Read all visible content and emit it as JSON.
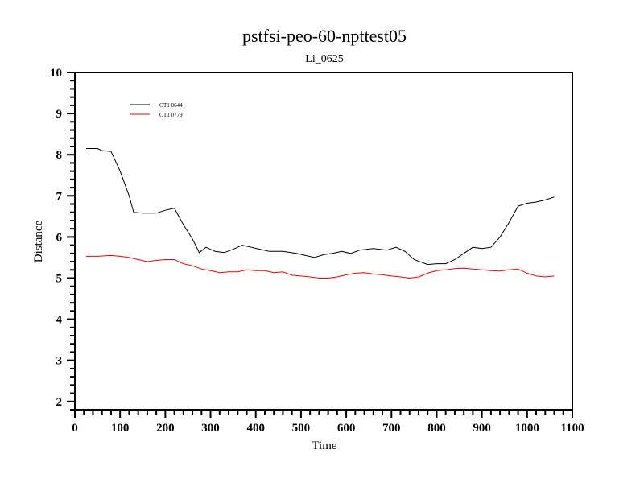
{
  "chart_data": {
    "type": "line",
    "title": "pstfsi-peo-60-npttest05",
    "subtitle": "Li_0625",
    "xlabel": "Time",
    "ylabel": "Distance",
    "xlim": [
      0,
      1100
    ],
    "ylim": [
      1.8,
      10
    ],
    "xticks": [
      0,
      100,
      200,
      300,
      400,
      500,
      600,
      700,
      800,
      900,
      1000,
      1100
    ],
    "yticks": [
      2,
      3,
      4,
      5,
      6,
      7,
      8,
      9,
      10
    ],
    "grid": false,
    "legend_position": "top-left",
    "series": [
      {
        "name": "OT1 0644",
        "color": "#000000",
        "x": [
          25,
          50,
          60,
          80,
          100,
          120,
          130,
          150,
          180,
          200,
          220,
          240,
          260,
          275,
          290,
          310,
          330,
          350,
          370,
          390,
          410,
          430,
          460,
          490,
          510,
          530,
          550,
          570,
          590,
          610,
          630,
          660,
          690,
          710,
          730,
          750,
          780,
          800,
          820,
          840,
          860,
          880,
          900,
          920,
          940,
          960,
          980,
          1000,
          1020,
          1040,
          1060
        ],
        "y": [
          8.15,
          8.15,
          8.1,
          8.08,
          7.6,
          7.0,
          6.6,
          6.58,
          6.58,
          6.65,
          6.7,
          6.3,
          5.95,
          5.62,
          5.75,
          5.65,
          5.62,
          5.7,
          5.8,
          5.75,
          5.7,
          5.65,
          5.65,
          5.6,
          5.55,
          5.5,
          5.57,
          5.6,
          5.65,
          5.6,
          5.68,
          5.72,
          5.68,
          5.75,
          5.65,
          5.45,
          5.33,
          5.35,
          5.35,
          5.45,
          5.6,
          5.75,
          5.72,
          5.75,
          6.0,
          6.35,
          6.75,
          6.82,
          6.85,
          6.9,
          6.97
        ]
      },
      {
        "name": "OT1 0779",
        "color": "#ff0000",
        "x": [
          25,
          50,
          80,
          100,
          120,
          140,
          160,
          180,
          200,
          220,
          240,
          260,
          280,
          300,
          320,
          340,
          360,
          380,
          400,
          420,
          440,
          460,
          480,
          500,
          520,
          540,
          560,
          580,
          600,
          620,
          640,
          660,
          680,
          700,
          720,
          740,
          760,
          780,
          800,
          820,
          840,
          860,
          880,
          900,
          920,
          940,
          960,
          980,
          1000,
          1020,
          1040,
          1060
        ],
        "y": [
          5.53,
          5.53,
          5.55,
          5.53,
          5.5,
          5.45,
          5.4,
          5.43,
          5.45,
          5.45,
          5.35,
          5.3,
          5.22,
          5.18,
          5.13,
          5.15,
          5.15,
          5.2,
          5.18,
          5.18,
          5.13,
          5.15,
          5.07,
          5.05,
          5.03,
          5.0,
          5.0,
          5.03,
          5.08,
          5.12,
          5.13,
          5.1,
          5.08,
          5.05,
          5.03,
          5.0,
          5.03,
          5.12,
          5.18,
          5.2,
          5.23,
          5.24,
          5.22,
          5.2,
          5.18,
          5.17,
          5.2,
          5.22,
          5.12,
          5.05,
          5.03,
          5.05
        ]
      }
    ]
  }
}
